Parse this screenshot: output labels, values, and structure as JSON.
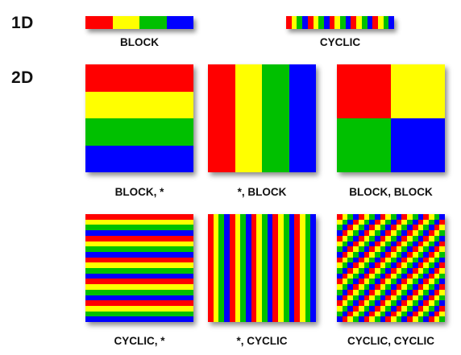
{
  "palette": [
    "#ff0000",
    "#ffff00",
    "#00c000",
    "#0000ff"
  ],
  "rows": {
    "one_d": "1D",
    "two_d": "2D"
  },
  "distributions": {
    "d1_block": {
      "caption": "BLOCK",
      "rows": "none",
      "cols": "block"
    },
    "d1_cyclic": {
      "caption": "CYCLIC",
      "rows": "none",
      "cols": "cyclic"
    },
    "d2_block_star": {
      "caption": "BLOCK, *",
      "rows": "block",
      "cols": "none"
    },
    "d2_star_block": {
      "caption": "*, BLOCK",
      "rows": "none",
      "cols": "block"
    },
    "d2_block_block": {
      "caption": "BLOCK, BLOCK",
      "rows": "block",
      "cols": "block"
    },
    "d2_cyclic_star": {
      "caption": "CYCLIC, *",
      "rows": "cyclic",
      "cols": "none"
    },
    "d2_star_cyclic": {
      "caption": "*, CYCLIC",
      "rows": "none",
      "cols": "cyclic"
    },
    "d2_cyclic_cyclic": {
      "caption": "CYCLIC, CYCLIC",
      "rows": "cyclic",
      "cols": "cyclic"
    }
  }
}
